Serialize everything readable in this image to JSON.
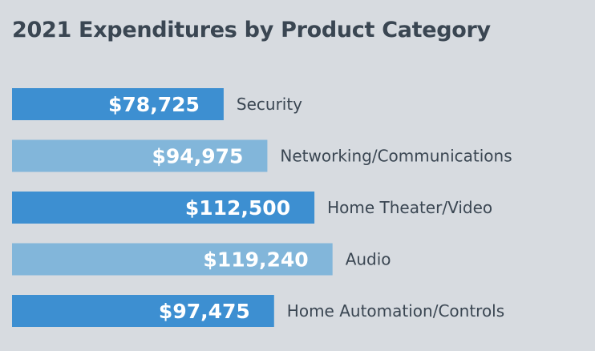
{
  "chart_data": {
    "type": "bar",
    "orientation": "horizontal",
    "title": "2021 Expenditures by Product Category",
    "xlabel": "",
    "ylabel": "",
    "grid": false,
    "categories": [
      "Security",
      "Networking/Communications",
      "Home Theater/Video",
      "Audio",
      "Home Automation/Controls"
    ],
    "values": [
      78725,
      94975,
      112500,
      119240,
      97475
    ],
    "value_labels": [
      "$78,725",
      "$94,975",
      "$112,500",
      "$119,240",
      "$97,475"
    ],
    "colors": [
      "#3d8fd1",
      "#82b6da",
      "#3d8fd1",
      "#82b6da",
      "#3d8fd1"
    ]
  }
}
